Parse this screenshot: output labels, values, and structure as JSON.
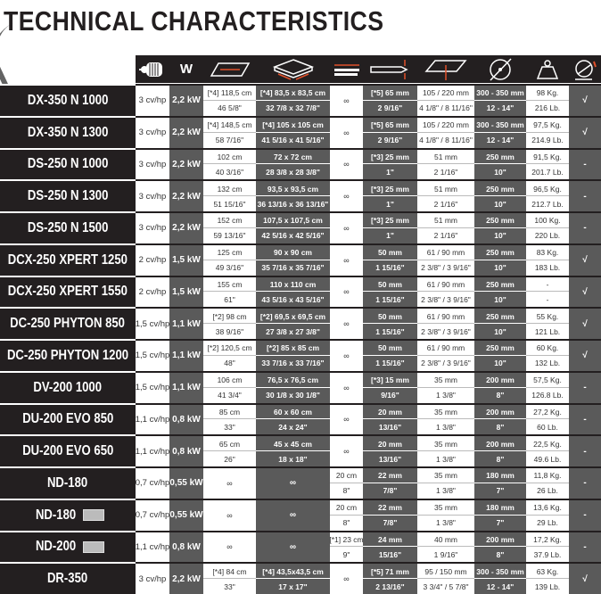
{
  "title": "TECHNICAL CHARACTERISTICS",
  "header": {
    "icons": [
      "motor-icon",
      "power-watt-icon",
      "cut-length-icon",
      "diagonal-cut-icon",
      "rip-length-icon",
      "cut-depth-90-icon",
      "cut-depth-45-icon",
      "blade-diameter-icon",
      "weight-icon",
      "laser-icon"
    ],
    "power_label": "W"
  },
  "colors": {
    "black": "#231f20",
    "gray": "#5a5a5a",
    "accent": "#e0502a",
    "white": "#ffffff"
  },
  "rows": [
    {
      "model": "DX-350 N 1000",
      "icon": false,
      "cv": [
        "3 cv/hp"
      ],
      "kw": [
        "2,2 kW"
      ],
      "c3": [
        "[*4] 118,5 cm",
        "46 5/8\""
      ],
      "c4": [
        "[*4] 83,5 x 83,5 cm",
        "32 7/8 x 32 7/8\""
      ],
      "c5": [
        "∞"
      ],
      "c6": [
        "[*5] 65 mm",
        "2 9/16\""
      ],
      "c7": [
        "105 / 220 mm",
        "4 1/8\" / 8 11/16\""
      ],
      "c8": [
        "300 - 350 mm",
        "12 - 14\""
      ],
      "c9": [
        "98 Kg.",
        "216 Lb."
      ],
      "c10": [
        "√"
      ]
    },
    {
      "model": "DX-350 N 1300",
      "icon": false,
      "cv": [
        "3 cv/hp"
      ],
      "kw": [
        "2,2 kW"
      ],
      "c3": [
        "[*4] 148,5 cm",
        "58 7/16\""
      ],
      "c4": [
        "[*4] 105 x 105 cm",
        "41 5/16 x 41 5/16\""
      ],
      "c5": [
        "∞"
      ],
      "c6": [
        "[*5] 65 mm",
        "2 9/16\""
      ],
      "c7": [
        "105 / 220 mm",
        "4 1/8\" / 8 11/16\""
      ],
      "c8": [
        "300 - 350 mm",
        "12 - 14\""
      ],
      "c9": [
        "97,5 Kg.",
        "214.9 Lb."
      ],
      "c10": [
        "√"
      ]
    },
    {
      "model": "DS-250 N 1000",
      "icon": false,
      "cv": [
        "3 cv/hp"
      ],
      "kw": [
        "2,2 kW"
      ],
      "c3": [
        "102 cm",
        "40 3/16\""
      ],
      "c4": [
        "72 x 72 cm",
        "28 3/8 x 28 3/8\""
      ],
      "c5": [
        "∞"
      ],
      "c6": [
        "[*3] 25 mm",
        "1\""
      ],
      "c7": [
        "51 mm",
        "2 1/16\""
      ],
      "c8": [
        "250 mm",
        "10\""
      ],
      "c9": [
        "91,5 Kg.",
        "201.7 Lb."
      ],
      "c10": [
        "-"
      ]
    },
    {
      "model": "DS-250 N 1300",
      "icon": false,
      "cv": [
        "3 cv/hp"
      ],
      "kw": [
        "2,2 kW"
      ],
      "c3": [
        "132 cm",
        "51 15/16\""
      ],
      "c4": [
        "93,5 x 93,5 cm",
        "36 13/16 x 36 13/16\""
      ],
      "c5": [
        "∞"
      ],
      "c6": [
        "[*3] 25 mm",
        "1\""
      ],
      "c7": [
        "51 mm",
        "2 1/16\""
      ],
      "c8": [
        "250 mm",
        "10\""
      ],
      "c9": [
        "96,5 Kg.",
        "212.7 Lb."
      ],
      "c10": [
        "-"
      ]
    },
    {
      "model": "DS-250 N 1500",
      "icon": false,
      "cv": [
        "3 cv/hp"
      ],
      "kw": [
        "2,2 kW"
      ],
      "c3": [
        "152 cm",
        "59 13/16\""
      ],
      "c4": [
        "107,5 x 107,5 cm",
        "42 5/16 x 42 5/16\""
      ],
      "c5": [
        "∞"
      ],
      "c6": [
        "[*3] 25 mm",
        "1\""
      ],
      "c7": [
        "51 mm",
        "2 1/16\""
      ],
      "c8": [
        "250 mm",
        "10\""
      ],
      "c9": [
        "100 Kg.",
        "220 Lb."
      ],
      "c10": [
        "-"
      ]
    },
    {
      "model": "DCX-250 XPERT 1250",
      "icon": false,
      "cv": [
        "2 cv/hp"
      ],
      "kw": [
        "1,5 kW"
      ],
      "c3": [
        "125 cm",
        "49 3/16\""
      ],
      "c4": [
        "90 x 90 cm",
        "35 7/16 x 35 7/16\""
      ],
      "c5": [
        "∞"
      ],
      "c6": [
        "50 mm",
        "1 15/16\""
      ],
      "c7": [
        "61 / 90 mm",
        "2 3/8\" / 3 9/16\""
      ],
      "c8": [
        "250 mm",
        "10\""
      ],
      "c9": [
        "83 Kg.",
        "183 Lb."
      ],
      "c10": [
        "√"
      ]
    },
    {
      "model": "DCX-250 XPERT 1550",
      "icon": false,
      "cv": [
        "2 cv/hp"
      ],
      "kw": [
        "1,5 kW"
      ],
      "c3": [
        "155 cm",
        "61\""
      ],
      "c4": [
        "110 x 110 cm",
        "43 5/16 x 43 5/16\""
      ],
      "c5": [
        "∞"
      ],
      "c6": [
        "50 mm",
        "1 15/16\""
      ],
      "c7": [
        "61 / 90 mm",
        "2 3/8\" / 3 9/16\""
      ],
      "c8": [
        "250 mm",
        "10\""
      ],
      "c9": [
        "-",
        "-"
      ],
      "c10": [
        "√"
      ]
    },
    {
      "model": "DC-250 PHYTON 850",
      "icon": false,
      "cv": [
        "1,5 cv/hp"
      ],
      "kw": [
        "1,1 kW"
      ],
      "c3": [
        "[*2] 98 cm",
        "38 9/16\""
      ],
      "c4": [
        "[*2] 69,5 x 69,5 cm",
        "27 3/8 x 27 3/8\""
      ],
      "c5": [
        "∞"
      ],
      "c6": [
        "50 mm",
        "1 15/16\""
      ],
      "c7": [
        "61 / 90 mm",
        "2 3/8\" / 3 9/16\""
      ],
      "c8": [
        "250 mm",
        "10\""
      ],
      "c9": [
        "55 Kg.",
        "121 Lb."
      ],
      "c10": [
        "√"
      ]
    },
    {
      "model": "DC-250 PHYTON 1200",
      "icon": false,
      "cv": [
        "1,5 cv/hp"
      ],
      "kw": [
        "1,1 kW"
      ],
      "c3": [
        "[*2] 120,5 cm",
        "48\""
      ],
      "c4": [
        "[*2] 85 x 85 cm",
        "33 7/16 x 33 7/16\""
      ],
      "c5": [
        "∞"
      ],
      "c6": [
        "50 mm",
        "1 15/16\""
      ],
      "c7": [
        "61 / 90 mm",
        "2 3/8\" / 3 9/16\""
      ],
      "c8": [
        "250 mm",
        "10\""
      ],
      "c9": [
        "60 Kg.",
        "132 Lb."
      ],
      "c10": [
        "√"
      ]
    },
    {
      "model": "DV-200 1000",
      "icon": false,
      "cv": [
        "1,5 cv/hp"
      ],
      "kw": [
        "1,1 kW"
      ],
      "c3": [
        "106 cm",
        "41 3/4\""
      ],
      "c4": [
        "76,5 x 76,5 cm",
        "30 1/8 x 30 1/8\""
      ],
      "c5": [
        "∞"
      ],
      "c6": [
        "[*3] 15 mm",
        "9/16\""
      ],
      "c7": [
        "35 mm",
        "1 3/8\""
      ],
      "c8": [
        "200 mm",
        "8\""
      ],
      "c9": [
        "57,5 Kg.",
        "126.8 Lb."
      ],
      "c10": [
        "-"
      ]
    },
    {
      "model": "DU-200 EVO 850",
      "icon": false,
      "cv": [
        "1,1 cv/hp"
      ],
      "kw": [
        "0,8 kW"
      ],
      "c3": [
        "85 cm",
        "33\""
      ],
      "c4": [
        "60 x 60 cm",
        "24 x 24\""
      ],
      "c5": [
        "∞"
      ],
      "c6": [
        "20 mm",
        "13/16\""
      ],
      "c7": [
        "35 mm",
        "1 3/8\""
      ],
      "c8": [
        "200 mm",
        "8\""
      ],
      "c9": [
        "27,2 Kg.",
        "60 Lb."
      ],
      "c10": [
        "-"
      ]
    },
    {
      "model": "DU-200 EVO 650",
      "icon": false,
      "cv": [
        "1,1 cv/hp"
      ],
      "kw": [
        "0,8 kW"
      ],
      "c3": [
        "65 cm",
        "26\""
      ],
      "c4": [
        "45 x 45 cm",
        "18 x 18\""
      ],
      "c5": [
        "∞"
      ],
      "c6": [
        "20 mm",
        "13/16\""
      ],
      "c7": [
        "35 mm",
        "1 3/8\""
      ],
      "c8": [
        "200 mm",
        "8\""
      ],
      "c9": [
        "22,5 Kg.",
        "49.6 Lb."
      ],
      "c10": [
        "-"
      ]
    },
    {
      "model": "ND-180",
      "icon": false,
      "cv": [
        "0,7 cv/hp"
      ],
      "kw": [
        "0,55 kW"
      ],
      "c3": [
        "∞"
      ],
      "c4": [
        "∞"
      ],
      "c5": [
        "20 cm",
        "8\""
      ],
      "c6": [
        "22 mm",
        "7/8\""
      ],
      "c7": [
        "35 mm",
        "1 3/8\""
      ],
      "c8": [
        "180 mm",
        "7\""
      ],
      "c9": [
        "11,8 Kg.",
        "26 Lb."
      ],
      "c10": [
        "-"
      ]
    },
    {
      "model": "ND-180",
      "icon": true,
      "cv": [
        "0,7 cv/hp"
      ],
      "kw": [
        "0,55 kW"
      ],
      "c3": [
        "∞"
      ],
      "c4": [
        "∞"
      ],
      "c5": [
        "20 cm",
        "8\""
      ],
      "c6": [
        "22 mm",
        "7/8\""
      ],
      "c7": [
        "35 mm",
        "1 3/8\""
      ],
      "c8": [
        "180 mm",
        "7\""
      ],
      "c9": [
        "13,6 Kg.",
        "29 Lb."
      ],
      "c10": [
        "-"
      ]
    },
    {
      "model": "ND-200",
      "icon": true,
      "cv": [
        "1,1 cv/hp"
      ],
      "kw": [
        "0,8 kW"
      ],
      "c3": [
        "∞"
      ],
      "c4": [
        "∞"
      ],
      "c5": [
        "[*1] 23 cm",
        "9\""
      ],
      "c6": [
        "24 mm",
        "15/16\""
      ],
      "c7": [
        "40 mm",
        "1 9/16\""
      ],
      "c8": [
        "200 mm",
        "8\""
      ],
      "c9": [
        "17,2 Kg.",
        "37.9 Lb."
      ],
      "c10": [
        "-"
      ]
    },
    {
      "model": "DR-350",
      "icon": false,
      "cv": [
        "3 cv/hp"
      ],
      "kw": [
        "2,2 kW"
      ],
      "c3": [
        "[*4] 84 cm",
        "33\""
      ],
      "c4": [
        "[*4] 43,5x43,5 cm",
        "17 x 17\""
      ],
      "c5": [
        "∞"
      ],
      "c6": [
        "[*5] 71 mm",
        "2 13/16\""
      ],
      "c7": [
        "95 / 150 mm",
        "3 3/4\" / 5 7/8\""
      ],
      "c8": [
        "300 - 350 mm",
        "12 - 14\""
      ],
      "c9": [
        "63 Kg.",
        "139 Lb."
      ],
      "c10": [
        "√"
      ]
    }
  ]
}
